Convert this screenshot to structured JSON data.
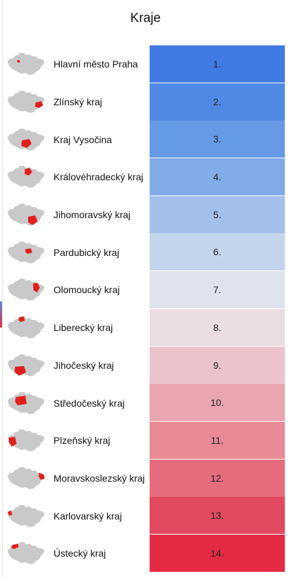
{
  "header": {
    "title": "Kraje"
  },
  "regions": [
    {
      "name": "Hlavní město Praha",
      "rank": "1.",
      "color": "#3f7be3",
      "icon": "czech-map-praha-icon"
    },
    {
      "name": "Zlínský kraj",
      "rank": "2.",
      "color": "#5089e5",
      "icon": "czech-map-zlinsky-icon"
    },
    {
      "name": "Kraj Vysočina",
      "rank": "3.",
      "color": "#6699e6",
      "icon": "czech-map-vysocina-icon"
    },
    {
      "name": "Královéhradecký kraj",
      "rank": "4.",
      "color": "#81abe9",
      "icon": "czech-map-kralovehradecky-icon"
    },
    {
      "name": "Jihomoravský kraj",
      "rank": "5.",
      "color": "#a2c0ea",
      "icon": "czech-map-jihomoravsky-icon"
    },
    {
      "name": "Pardubický kraj",
      "rank": "6.",
      "color": "#c3d5ec",
      "icon": "czech-map-pardubicky-icon"
    },
    {
      "name": "Olomoucký kraj",
      "rank": "7.",
      "color": "#dfe3ed",
      "icon": "czech-map-olomoucky-icon"
    },
    {
      "name": "Liberecký kraj",
      "rank": "8.",
      "color": "#ebdde1",
      "icon": "czech-map-liberecky-icon"
    },
    {
      "name": "Jihočeský kraj",
      "rank": "9.",
      "color": "#ecc3cb",
      "icon": "czech-map-jihocesky-icon"
    },
    {
      "name": "Středočeský kraj",
      "rank": "10.",
      "color": "#e9a5b0",
      "icon": "czech-map-stredocesky-icon"
    },
    {
      "name": "Plzeňský kraj",
      "rank": "11.",
      "color": "#e88a96",
      "icon": "czech-map-plzensky-icon"
    },
    {
      "name": "Moravskoslezský kraj",
      "rank": "12.",
      "color": "#e66b7c",
      "icon": "czech-map-moravskoslezsky-icon"
    },
    {
      "name": "Karlovarský kraj",
      "rank": "13.",
      "color": "#e44a5f",
      "icon": "czech-map-karlovarsky-icon"
    },
    {
      "name": "Ústecký kraj",
      "rank": "14.",
      "color": "#e52a44",
      "icon": "czech-map-ustecky-icon"
    }
  ]
}
